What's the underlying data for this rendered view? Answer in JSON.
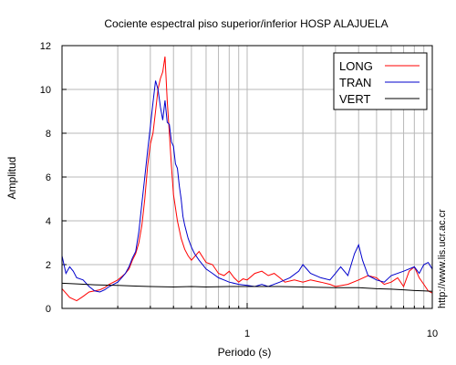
{
  "chart_data": {
    "type": "line",
    "title": "Cociente espectral piso superior/inferior  HOSP ALAJUELA",
    "xlabel": "Periodo (s)",
    "ylabel": "Amplitud",
    "x_scale": "log",
    "xlim": [
      0.1,
      10
    ],
    "ylim": [
      0,
      12
    ],
    "x_tick_labels": [
      {
        "value": 1,
        "label": "1"
      },
      {
        "value": 10,
        "label": "10"
      }
    ],
    "y_ticks": [
      0,
      2,
      4,
      6,
      8,
      10,
      12
    ],
    "grid": true,
    "legend_position": "top-right",
    "watermark": "http://www.lis.ucr.ac.cr",
    "series": [
      {
        "name": "LONG",
        "color": "#ff0000",
        "points": [
          [
            0.1,
            0.9
          ],
          [
            0.11,
            0.5
          ],
          [
            0.12,
            0.35
          ],
          [
            0.13,
            0.55
          ],
          [
            0.14,
            0.75
          ],
          [
            0.15,
            0.8
          ],
          [
            0.16,
            0.85
          ],
          [
            0.17,
            0.95
          ],
          [
            0.18,
            1.1
          ],
          [
            0.19,
            1.2
          ],
          [
            0.2,
            1.3
          ],
          [
            0.21,
            1.45
          ],
          [
            0.22,
            1.6
          ],
          [
            0.23,
            1.8
          ],
          [
            0.24,
            2.2
          ],
          [
            0.25,
            2.5
          ],
          [
            0.26,
            3.0
          ],
          [
            0.27,
            3.8
          ],
          [
            0.28,
            5.0
          ],
          [
            0.29,
            6.5
          ],
          [
            0.3,
            7.5
          ],
          [
            0.31,
            8.0
          ],
          [
            0.32,
            9.0
          ],
          [
            0.33,
            10.0
          ],
          [
            0.34,
            10.5
          ],
          [
            0.35,
            10.8
          ],
          [
            0.36,
            11.5
          ],
          [
            0.37,
            9.5
          ],
          [
            0.38,
            8.0
          ],
          [
            0.39,
            6.5
          ],
          [
            0.4,
            5.2
          ],
          [
            0.42,
            4.0
          ],
          [
            0.44,
            3.2
          ],
          [
            0.46,
            2.7
          ],
          [
            0.48,
            2.4
          ],
          [
            0.5,
            2.2
          ],
          [
            0.55,
            2.6
          ],
          [
            0.6,
            2.1
          ],
          [
            0.65,
            2.0
          ],
          [
            0.7,
            1.6
          ],
          [
            0.75,
            1.5
          ],
          [
            0.8,
            1.7
          ],
          [
            0.85,
            1.4
          ],
          [
            0.9,
            1.2
          ],
          [
            0.95,
            1.35
          ],
          [
            1.0,
            1.3
          ],
          [
            1.1,
            1.6
          ],
          [
            1.2,
            1.7
          ],
          [
            1.3,
            1.5
          ],
          [
            1.4,
            1.6
          ],
          [
            1.5,
            1.4
          ],
          [
            1.6,
            1.2
          ],
          [
            1.8,
            1.3
          ],
          [
            2.0,
            1.2
          ],
          [
            2.2,
            1.3
          ],
          [
            2.5,
            1.2
          ],
          [
            2.8,
            1.1
          ],
          [
            3.0,
            1.0
          ],
          [
            3.5,
            1.1
          ],
          [
            4.0,
            1.3
          ],
          [
            4.5,
            1.5
          ],
          [
            5.0,
            1.4
          ],
          [
            5.5,
            1.1
          ],
          [
            6.0,
            1.2
          ],
          [
            6.5,
            1.4
          ],
          [
            7.0,
            1.0
          ],
          [
            7.5,
            1.7
          ],
          [
            8.0,
            1.9
          ],
          [
            8.5,
            1.4
          ],
          [
            9.0,
            1.1
          ],
          [
            9.5,
            0.8
          ],
          [
            10.0,
            0.7
          ]
        ]
      },
      {
        "name": "TRAN",
        "color": "#0000cc",
        "points": [
          [
            0.1,
            2.4
          ],
          [
            0.105,
            1.6
          ],
          [
            0.11,
            1.9
          ],
          [
            0.115,
            1.7
          ],
          [
            0.12,
            1.4
          ],
          [
            0.13,
            1.3
          ],
          [
            0.14,
            1.0
          ],
          [
            0.15,
            0.8
          ],
          [
            0.16,
            0.75
          ],
          [
            0.17,
            0.85
          ],
          [
            0.18,
            1.0
          ],
          [
            0.19,
            1.1
          ],
          [
            0.2,
            1.2
          ],
          [
            0.21,
            1.4
          ],
          [
            0.22,
            1.6
          ],
          [
            0.23,
            1.9
          ],
          [
            0.24,
            2.3
          ],
          [
            0.25,
            2.6
          ],
          [
            0.26,
            3.5
          ],
          [
            0.27,
            4.8
          ],
          [
            0.28,
            6.0
          ],
          [
            0.29,
            7.2
          ],
          [
            0.3,
            8.3
          ],
          [
            0.31,
            9.4
          ],
          [
            0.32,
            10.4
          ],
          [
            0.33,
            10.0
          ],
          [
            0.34,
            9.2
          ],
          [
            0.35,
            8.6
          ],
          [
            0.36,
            9.5
          ],
          [
            0.37,
            8.5
          ],
          [
            0.38,
            8.4
          ],
          [
            0.39,
            7.6
          ],
          [
            0.4,
            7.4
          ],
          [
            0.41,
            6.6
          ],
          [
            0.42,
            6.4
          ],
          [
            0.43,
            5.6
          ],
          [
            0.44,
            5.0
          ],
          [
            0.45,
            4.2
          ],
          [
            0.46,
            3.8
          ],
          [
            0.48,
            3.2
          ],
          [
            0.5,
            2.8
          ],
          [
            0.52,
            2.5
          ],
          [
            0.55,
            2.2
          ],
          [
            0.6,
            1.8
          ],
          [
            0.65,
            1.6
          ],
          [
            0.7,
            1.4
          ],
          [
            0.75,
            1.3
          ],
          [
            0.8,
            1.2
          ],
          [
            0.9,
            1.1
          ],
          [
            1.0,
            1.05
          ],
          [
            1.1,
            1.0
          ],
          [
            1.2,
            1.1
          ],
          [
            1.3,
            1.0
          ],
          [
            1.5,
            1.2
          ],
          [
            1.7,
            1.4
          ],
          [
            1.9,
            1.7
          ],
          [
            2.0,
            2.0
          ],
          [
            2.2,
            1.6
          ],
          [
            2.5,
            1.4
          ],
          [
            2.8,
            1.3
          ],
          [
            3.0,
            1.6
          ],
          [
            3.2,
            1.9
          ],
          [
            3.5,
            1.5
          ],
          [
            3.8,
            2.5
          ],
          [
            4.0,
            2.9
          ],
          [
            4.2,
            2.2
          ],
          [
            4.5,
            1.5
          ],
          [
            5.0,
            1.3
          ],
          [
            5.5,
            1.2
          ],
          [
            6.0,
            1.5
          ],
          [
            7.0,
            1.7
          ],
          [
            8.0,
            1.9
          ],
          [
            8.5,
            1.6
          ],
          [
            9.0,
            2.0
          ],
          [
            9.5,
            2.1
          ],
          [
            10.0,
            1.8
          ]
        ]
      },
      {
        "name": "VERT",
        "color": "#000000",
        "points": [
          [
            0.1,
            1.15
          ],
          [
            0.12,
            1.12
          ],
          [
            0.15,
            1.08
          ],
          [
            0.2,
            1.05
          ],
          [
            0.25,
            1.02
          ],
          [
            0.3,
            1.0
          ],
          [
            0.4,
            0.98
          ],
          [
            0.5,
            1.0
          ],
          [
            0.6,
            0.98
          ],
          [
            0.8,
            1.0
          ],
          [
            1.0,
            1.0
          ],
          [
            1.5,
            1.0
          ],
          [
            2.0,
            0.98
          ],
          [
            3.0,
            0.95
          ],
          [
            4.0,
            0.95
          ],
          [
            5.0,
            0.9
          ],
          [
            6.0,
            0.88
          ],
          [
            7.0,
            0.85
          ],
          [
            8.0,
            0.82
          ],
          [
            9.0,
            0.8
          ],
          [
            10.0,
            0.78
          ]
        ]
      }
    ]
  }
}
